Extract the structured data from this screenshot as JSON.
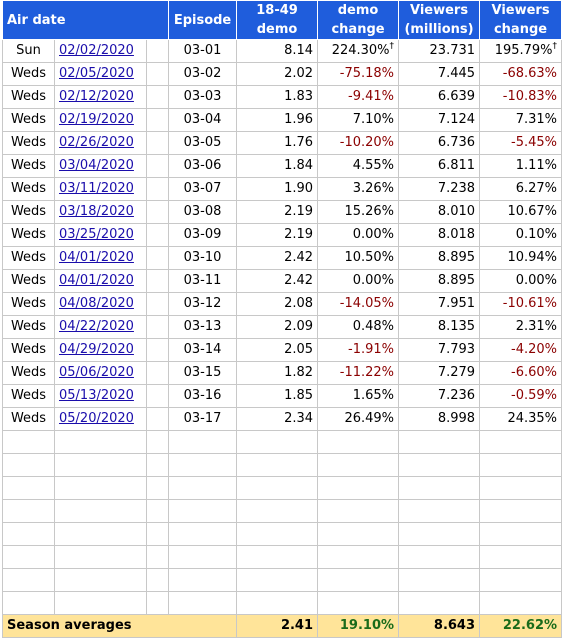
{
  "headers": {
    "air_date": "Air date",
    "episode": "Episode",
    "demo_l1": "18-49",
    "demo_l2": "demo",
    "demo_change_l1": "demo",
    "demo_change_l2": "change",
    "viewers_l1": "Viewers",
    "viewers_l2": "(millions)",
    "viewers_change_l1": "Viewers",
    "viewers_change_l2": "change"
  },
  "rows": [
    {
      "day": "Sun",
      "date": "02/02/2020",
      "episode": "03-01",
      "demo": "8.14",
      "demo_change": "224.30%",
      "demo_change_mark": "†",
      "viewers": "23.731",
      "viewers_change": "195.79%",
      "viewers_change_mark": "†"
    },
    {
      "day": "Weds",
      "date": "02/05/2020",
      "episode": "03-02",
      "demo": "2.02",
      "demo_change": "-75.18%",
      "demo_change_mark": "",
      "viewers": "7.445",
      "viewers_change": "-68.63%",
      "viewers_change_mark": ""
    },
    {
      "day": "Weds",
      "date": "02/12/2020",
      "episode": "03-03",
      "demo": "1.83",
      "demo_change": "-9.41%",
      "demo_change_mark": "",
      "viewers": "6.639",
      "viewers_change": "-10.83%",
      "viewers_change_mark": ""
    },
    {
      "day": "Weds",
      "date": "02/19/2020",
      "episode": "03-04",
      "demo": "1.96",
      "demo_change": "7.10%",
      "demo_change_mark": "",
      "viewers": "7.124",
      "viewers_change": "7.31%",
      "viewers_change_mark": ""
    },
    {
      "day": "Weds",
      "date": "02/26/2020",
      "episode": "03-05",
      "demo": "1.76",
      "demo_change": "-10.20%",
      "demo_change_mark": "",
      "viewers": "6.736",
      "viewers_change": "-5.45%",
      "viewers_change_mark": ""
    },
    {
      "day": "Weds",
      "date": "03/04/2020",
      "episode": "03-06",
      "demo": "1.84",
      "demo_change": "4.55%",
      "demo_change_mark": "",
      "viewers": "6.811",
      "viewers_change": "1.11%",
      "viewers_change_mark": ""
    },
    {
      "day": "Weds",
      "date": "03/11/2020",
      "episode": "03-07",
      "demo": "1.90",
      "demo_change": "3.26%",
      "demo_change_mark": "",
      "viewers": "7.238",
      "viewers_change": "6.27%",
      "viewers_change_mark": ""
    },
    {
      "day": "Weds",
      "date": "03/18/2020",
      "episode": "03-08",
      "demo": "2.19",
      "demo_change": "15.26%",
      "demo_change_mark": "",
      "viewers": "8.010",
      "viewers_change": "10.67%",
      "viewers_change_mark": ""
    },
    {
      "day": "Weds",
      "date": "03/25/2020",
      "episode": "03-09",
      "demo": "2.19",
      "demo_change": "0.00%",
      "demo_change_mark": "",
      "viewers": "8.018",
      "viewers_change": "0.10%",
      "viewers_change_mark": ""
    },
    {
      "day": "Weds",
      "date": "04/01/2020",
      "episode": "03-10",
      "demo": "2.42",
      "demo_change": "10.50%",
      "demo_change_mark": "",
      "viewers": "8.895",
      "viewers_change": "10.94%",
      "viewers_change_mark": ""
    },
    {
      "day": "Weds",
      "date": "04/01/2020",
      "episode": "03-11",
      "demo": "2.42",
      "demo_change": "0.00%",
      "demo_change_mark": "",
      "viewers": "8.895",
      "viewers_change": "0.00%",
      "viewers_change_mark": ""
    },
    {
      "day": "Weds",
      "date": "04/08/2020",
      "episode": "03-12",
      "demo": "2.08",
      "demo_change": "-14.05%",
      "demo_change_mark": "",
      "viewers": "7.951",
      "viewers_change": "-10.61%",
      "viewers_change_mark": ""
    },
    {
      "day": "Weds",
      "date": "04/22/2020",
      "episode": "03-13",
      "demo": "2.09",
      "demo_change": "0.48%",
      "demo_change_mark": "",
      "viewers": "8.135",
      "viewers_change": "2.31%",
      "viewers_change_mark": ""
    },
    {
      "day": "Weds",
      "date": "04/29/2020",
      "episode": "03-14",
      "demo": "2.05",
      "demo_change": "-1.91%",
      "demo_change_mark": "",
      "viewers": "7.793",
      "viewers_change": "-4.20%",
      "viewers_change_mark": ""
    },
    {
      "day": "Weds",
      "date": "05/06/2020",
      "episode": "03-15",
      "demo": "1.82",
      "demo_change": "-11.22%",
      "demo_change_mark": "",
      "viewers": "7.279",
      "viewers_change": "-6.60%",
      "viewers_change_mark": ""
    },
    {
      "day": "Weds",
      "date": "05/13/2020",
      "episode": "03-16",
      "demo": "1.85",
      "demo_change": "1.65%",
      "demo_change_mark": "",
      "viewers": "7.236",
      "viewers_change": "-0.59%",
      "viewers_change_mark": ""
    },
    {
      "day": "Weds",
      "date": "05/20/2020",
      "episode": "03-17",
      "demo": "2.34",
      "demo_change": "26.49%",
      "demo_change_mark": "",
      "viewers": "8.998",
      "viewers_change": "24.35%",
      "viewers_change_mark": ""
    }
  ],
  "empty_rows": 8,
  "footer": {
    "label": "Season averages",
    "demo": "2.41",
    "demo_change": "19.10%",
    "viewers": "8.643",
    "viewers_change": "22.62%"
  },
  "colors": {
    "header_bg": "#1f5ddc",
    "footer_bg": "#ffe499",
    "negative": "#8b0000",
    "footer_positive": "#1a6b1a",
    "link": "#1a0dab"
  }
}
